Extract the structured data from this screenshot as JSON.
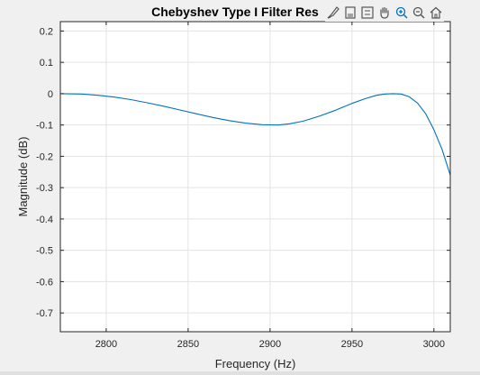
{
  "chart_data": {
    "type": "line",
    "title": "Chebyshev Type I Filter Res",
    "xlabel": "Frequency (Hz)",
    "ylabel": "Magnitude (dB)",
    "xlim": [
      2772,
      3010
    ],
    "ylim": [
      -0.76,
      0.23
    ],
    "xticks": [
      2800,
      2850,
      2900,
      2950,
      3000
    ],
    "yticks": [
      0.2,
      0.1,
      0,
      -0.1,
      -0.2,
      -0.3,
      -0.4,
      -0.5,
      -0.6,
      -0.7
    ],
    "xtick_labels": [
      "2800",
      "2850",
      "2900",
      "2950",
      "3000"
    ],
    "ytick_labels": [
      "0.2",
      "0.1",
      "0",
      "-0.1",
      "-0.2",
      "-0.3",
      "-0.4",
      "-0.5",
      "-0.6",
      "-0.7"
    ],
    "grid": true,
    "series": [
      {
        "color": "#0072bd",
        "x": [
          2772,
          2785,
          2795,
          2805,
          2815,
          2825,
          2835,
          2845,
          2855,
          2865,
          2875,
          2885,
          2895,
          2905,
          2912,
          2920,
          2930,
          2940,
          2950,
          2958,
          2965,
          2970,
          2975,
          2980,
          2985,
          2990,
          2995,
          3000,
          3005,
          3010
        ],
        "y": [
          0.0,
          -0.001,
          -0.005,
          -0.011,
          -0.019,
          -0.029,
          -0.04,
          -0.052,
          -0.064,
          -0.076,
          -0.086,
          -0.094,
          -0.099,
          -0.1,
          -0.096,
          -0.088,
          -0.072,
          -0.053,
          -0.031,
          -0.016,
          -0.005,
          -0.001,
          0.0,
          -0.001,
          -0.01,
          -0.03,
          -0.064,
          -0.115,
          -0.178,
          -0.26
        ]
      }
    ]
  },
  "toolbar": {
    "icons": [
      "brush-icon",
      "save-icon",
      "legend-icon",
      "pan-icon",
      "zoom-in-icon",
      "zoom-out-icon",
      "home-icon"
    ]
  }
}
